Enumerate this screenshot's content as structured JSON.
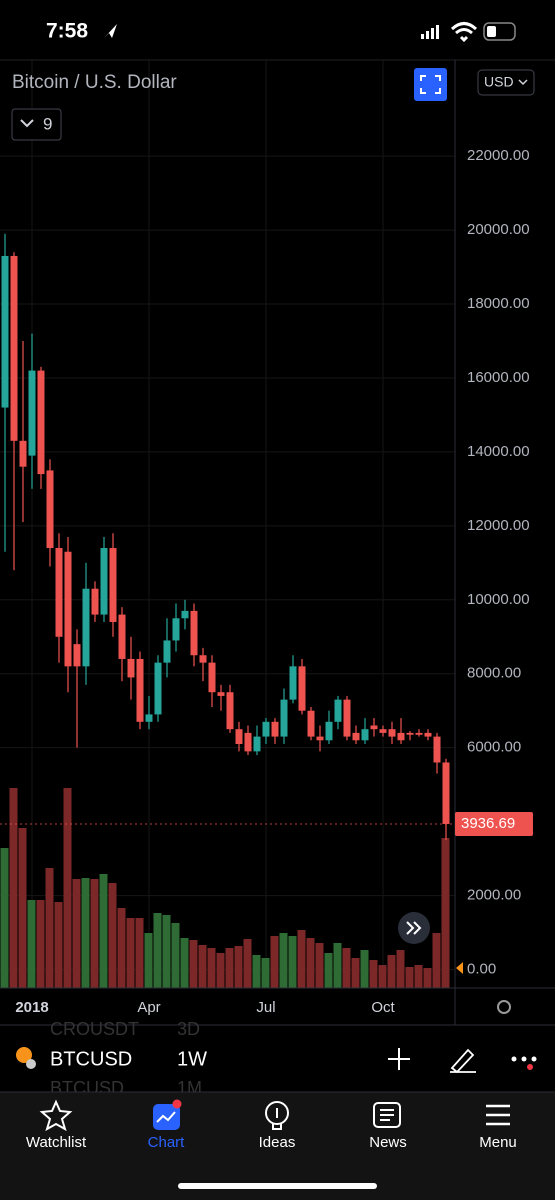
{
  "status_bar": {
    "time": "7:58"
  },
  "toolbar": {
    "indicators": "9",
    "currency": "USD"
  },
  "chart_data": {
    "type": "candlestick",
    "title": "Bitcoin / U.S. Dollar",
    "open": [
      15200,
      19300,
      14300,
      13900,
      16200,
      13500,
      11400,
      11300,
      8800,
      8200,
      10300,
      9600,
      11400,
      9600,
      8400,
      8400,
      6700,
      6900,
      8300,
      8900,
      9500,
      9700,
      8500,
      8300,
      7500,
      7500,
      6500,
      6400,
      5900,
      6300,
      6700,
      6300,
      7300,
      8200,
      7000,
      6300,
      6200,
      6700,
      7300,
      6400,
      6200,
      6600,
      6500,
      6500,
      6400,
      6400,
      6400,
      6400,
      6300,
      5600
    ],
    "high": [
      19900,
      19400,
      17000,
      17200,
      16300,
      13800,
      11800,
      11700,
      9200,
      11000,
      10500,
      11700,
      11800,
      9800,
      9000,
      8600,
      7400,
      8500,
      9500,
      9900,
      10000,
      9900,
      8700,
      8500,
      7700,
      7700,
      6700,
      6600,
      6600,
      6800,
      6800,
      7600,
      8500,
      8400,
      7100,
      6600,
      7000,
      7400,
      7400,
      6600,
      6800,
      6800,
      6600,
      6700,
      6800,
      6450,
      6500,
      6500,
      6400,
      5700
    ],
    "low": [
      11300,
      10800,
      12100,
      13000,
      13000,
      10900,
      8300,
      7500,
      6000,
      7700,
      9400,
      9400,
      9000,
      7800,
      7300,
      6500,
      6500,
      6700,
      7900,
      8600,
      9200,
      8200,
      7800,
      7100,
      7000,
      6400,
      5900,
      5800,
      5800,
      6100,
      6100,
      6100,
      7200,
      6900,
      6200,
      5900,
      6100,
      6500,
      6200,
      6100,
      6100,
      6300,
      6300,
      6100,
      6100,
      6200,
      6300,
      6200,
      5300,
      3500
    ],
    "close": [
      19300,
      14300,
      13600,
      16200,
      13400,
      11400,
      9000,
      8200,
      8200,
      10300,
      9600,
      11400,
      9400,
      8400,
      7900,
      6700,
      6900,
      8300,
      8900,
      9500,
      9700,
      8500,
      8300,
      7500,
      7400,
      6500,
      6100,
      5900,
      6300,
      6700,
      6300,
      7300,
      8200,
      7000,
      6300,
      6200,
      6700,
      7300,
      6300,
      6200,
      6500,
      6500,
      6400,
      6300,
      6200,
      6350,
      6350,
      6300,
      5600,
      3936.69
    ],
    "volume": [
      140,
      200,
      160,
      88,
      88,
      120,
      86,
      200,
      109,
      110,
      109,
      114,
      105,
      80,
      70,
      70,
      55,
      75,
      73,
      65,
      50,
      48,
      43,
      40,
      35,
      40,
      42,
      49,
      33,
      30,
      52,
      55,
      52,
      58,
      50,
      45,
      35,
      45,
      40,
      30,
      38,
      28,
      23,
      33,
      38,
      21,
      23,
      20,
      55,
      150
    ],
    "up_color": "#26a69a",
    "down_color": "#ef5350",
    "volume_up_color": "#2e6b35",
    "volume_down_color": "#7d2828",
    "ylim": [
      -500,
      24600
    ],
    "yticks": [
      {
        "value": 0,
        "label": "0.00"
      },
      {
        "value": 2000,
        "label": "2000.00"
      },
      {
        "value": 6000,
        "label": "6000.00"
      },
      {
        "value": 8000,
        "label": "8000.00"
      },
      {
        "value": 10000,
        "label": "10000.00"
      },
      {
        "value": 12000,
        "label": "12000.00"
      },
      {
        "value": 14000,
        "label": "14000.00"
      },
      {
        "value": 16000,
        "label": "16000.00"
      },
      {
        "value": 18000,
        "label": "18000.00"
      },
      {
        "value": 20000,
        "label": "20000.00"
      },
      {
        "value": 22000,
        "label": "22000.00"
      }
    ],
    "xticks": [
      {
        "value": 3,
        "label": "2018"
      },
      {
        "value": 16,
        "label": "Apr"
      },
      {
        "value": 29,
        "label": "Jul"
      },
      {
        "value": 42,
        "label": "Oct"
      }
    ],
    "grid": true
  },
  "symbol_bar": {
    "prev_symbol": "CROUSDT",
    "prev_interval": "3D",
    "symbol": "BTCUSD",
    "interval": "1W",
    "next_symbol": "BTCUSD",
    "next_interval": "1M"
  },
  "tabs": [
    "Watchlist",
    "Chart",
    "Ideas",
    "News",
    "Menu"
  ]
}
